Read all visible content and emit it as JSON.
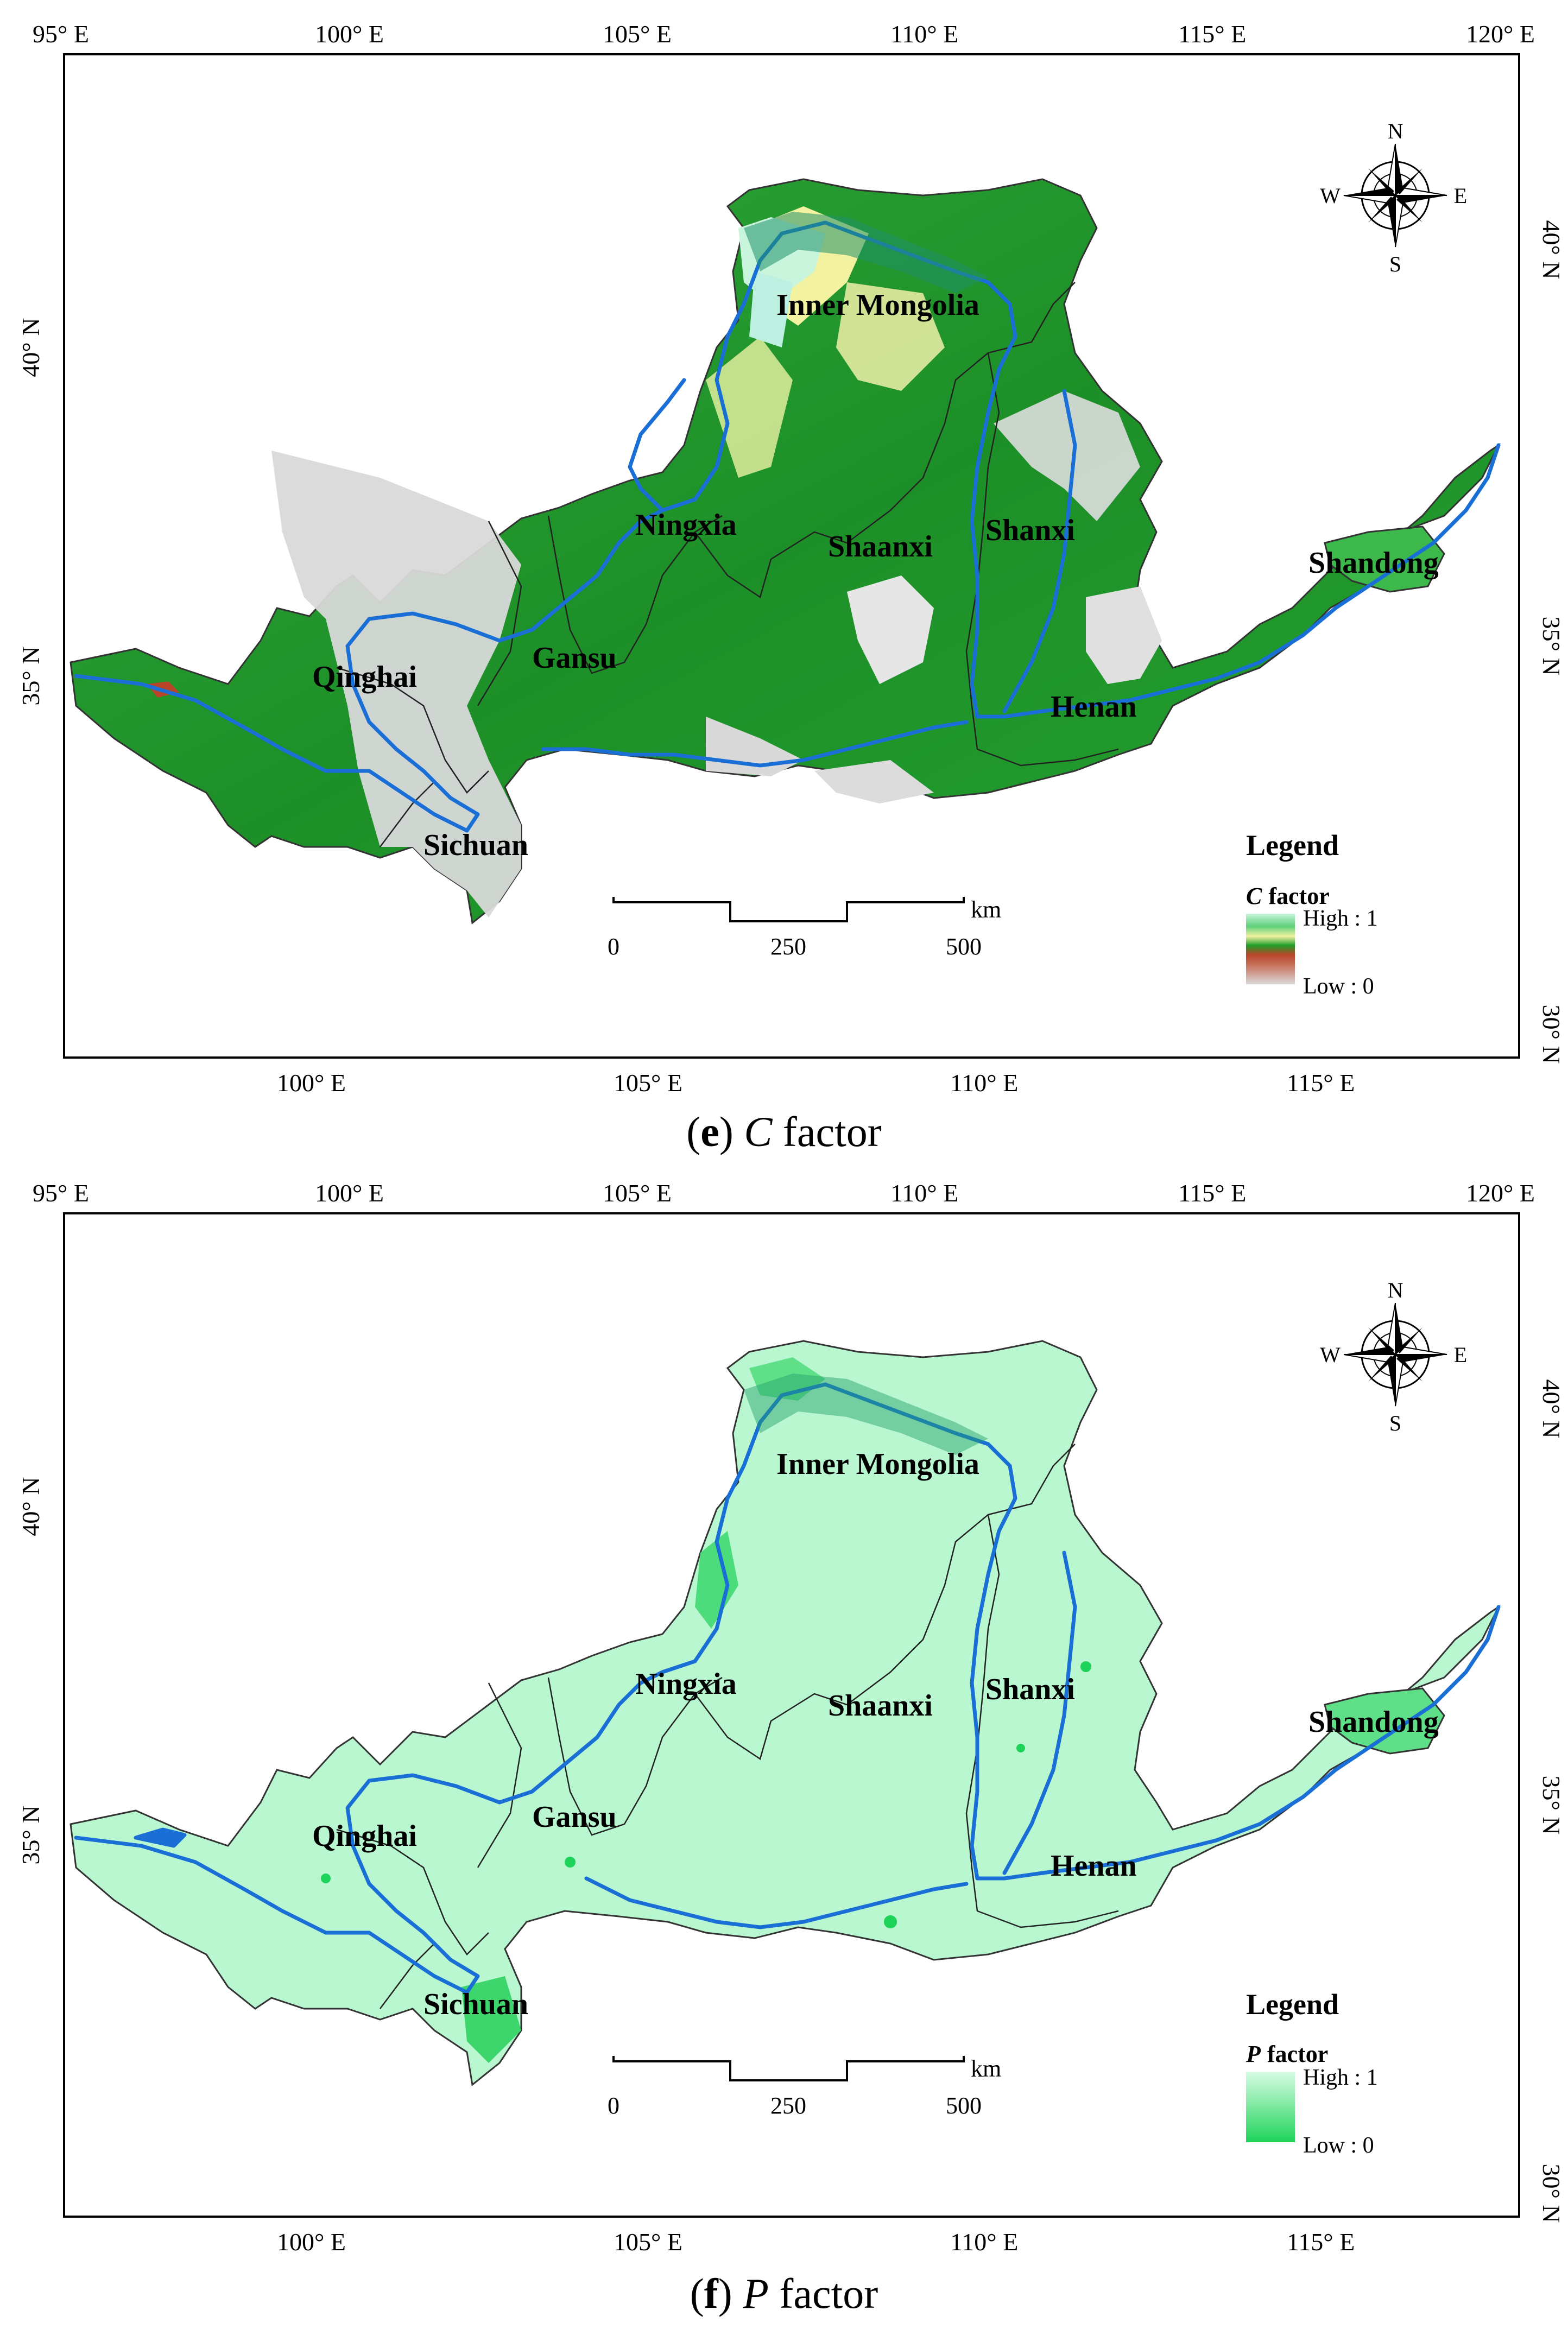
{
  "panels": [
    {
      "id": "e",
      "caption_letter": "e",
      "caption_symbol": "C",
      "caption_text": "factor",
      "legend_title": "Legend",
      "legend_factor_symbol": "C",
      "legend_factor_word": "factor",
      "legend_high": "High : 1",
      "legend_low": "Low : 0"
    },
    {
      "id": "f",
      "caption_letter": "f",
      "caption_symbol": "P",
      "caption_text": "factor",
      "legend_title": "Legend",
      "legend_factor_symbol": "P",
      "legend_factor_word": "factor",
      "legend_high": "High : 1",
      "legend_low": "Low : 0"
    }
  ],
  "graticule": {
    "top_lon_labels": [
      "95° E",
      "100° E",
      "105° E",
      "110° E",
      "115° E",
      "120° E"
    ],
    "bottom_lon_labels": [
      "100° E",
      "105° E",
      "110° E",
      "115° E"
    ],
    "left_lat_labels": [
      "40° N",
      "35° N"
    ],
    "right_lat_labels": [
      "40° N",
      "35° N",
      "30° N"
    ]
  },
  "provinces": [
    "Inner Mongolia",
    "Ningxia",
    "Shaanxi",
    "Shanxi",
    "Shandong",
    "Gansu",
    "Qinghai",
    "Henan",
    "Sichuan"
  ],
  "north_arrow": {
    "n": "N",
    "s": "S",
    "e": "E",
    "w": "W"
  },
  "scale_bar": {
    "labels": [
      "0",
      "250",
      "500"
    ],
    "unit": "km"
  },
  "colors": {
    "c_high": "#c8f5dc",
    "c_mid_green": "#1f9e2a",
    "c_yellow": "#f2f2a0",
    "c_red": "#b8452a",
    "c_low": "#d9d9d9",
    "p_high": "#b8f7cf",
    "p_low": "#1ed35a",
    "river": "#1a6fd6",
    "boundary": "#222222"
  }
}
